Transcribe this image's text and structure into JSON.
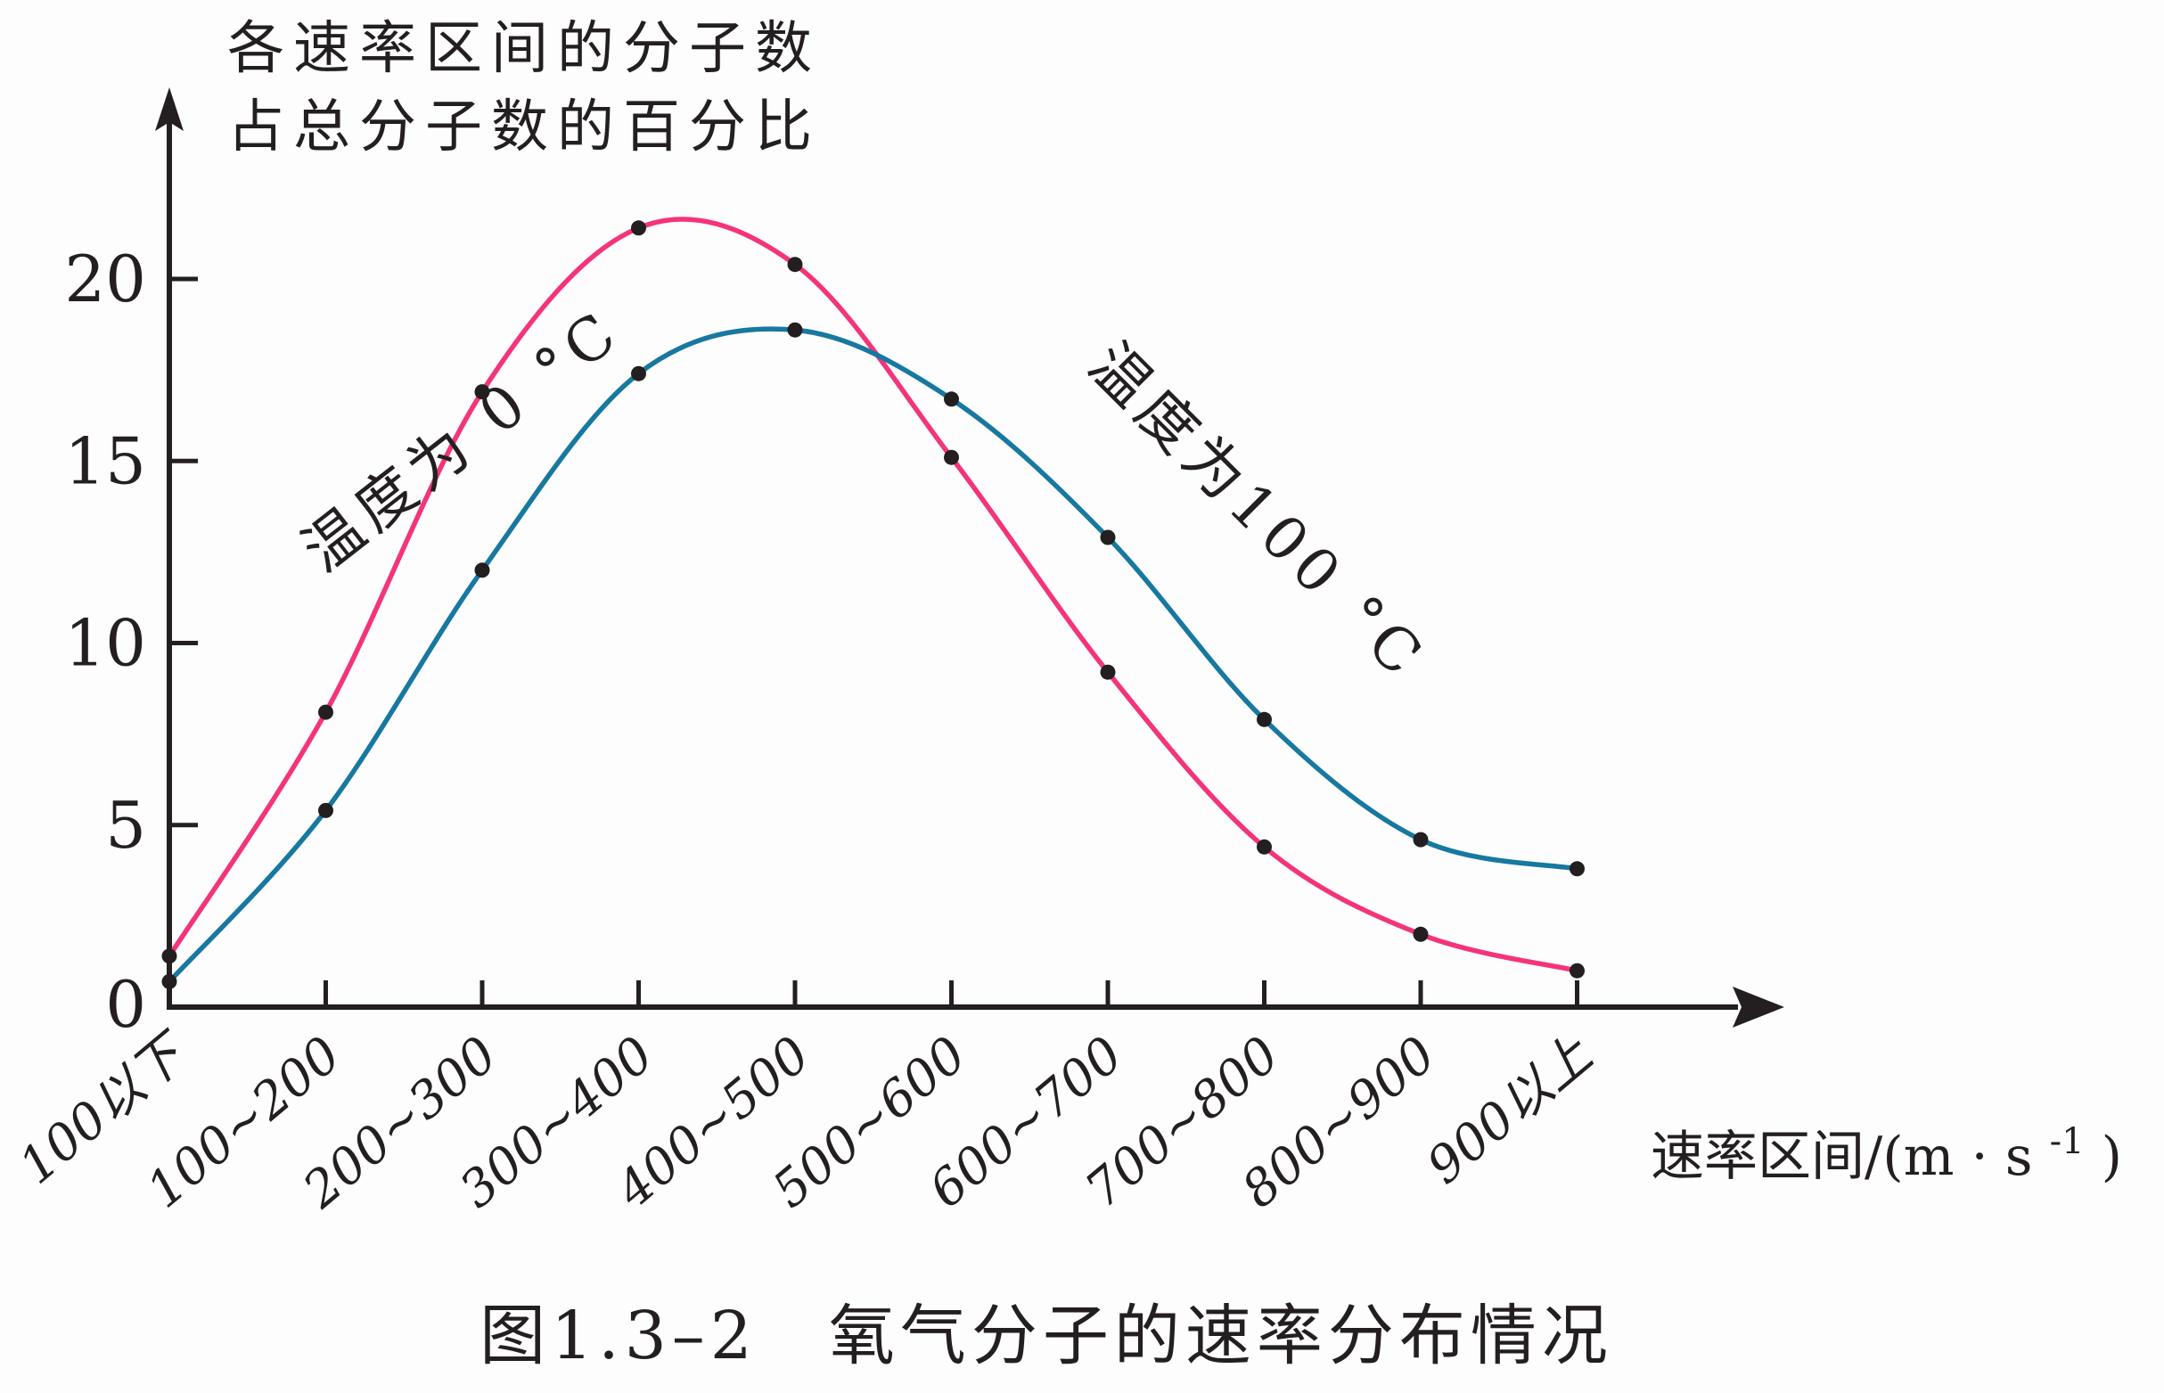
{
  "figure": {
    "y_axis_title_line1": "各速率区间的分子数",
    "y_axis_title_line2": "占总分子数的百分比",
    "x_axis_title": {
      "prefix": "速率区间/(m · s",
      "sup": "-1",
      "suffix": ")"
    },
    "caption": "图1.3–2　氧气分子的速率分布情况"
  },
  "chart_data": {
    "type": "line",
    "title": "氧气分子的速率分布情况",
    "xlabel": "速率区间/(m·s⁻¹)",
    "ylabel": "各速率区间的分子数占总分子数的百分比",
    "categories": [
      "100以下",
      "100~200",
      "200~300",
      "300~400",
      "400~500",
      "500~600",
      "600~700",
      "700~800",
      "800~900",
      "900以上"
    ],
    "y_ticks": [
      5,
      10,
      15,
      20
    ],
    "y_origin_label": "0",
    "ylim": [
      0,
      23.5
    ],
    "grid": false,
    "legend_position": "inline-rotated-labels",
    "point_color": "#231f20",
    "series": [
      {
        "name": "温度为 0 °C",
        "color": "#f4347a",
        "values": [
          1.4,
          8.1,
          16.9,
          21.4,
          20.4,
          15.1,
          9.2,
          4.4,
          2.0,
          1.0
        ],
        "label_pos": {
          "x": 532,
          "y": 512,
          "angle": -38
        }
      },
      {
        "name": "温度为100 °C",
        "color": "#1778a0",
        "values": [
          0.7,
          5.4,
          12.0,
          17.4,
          18.6,
          16.7,
          12.9,
          7.9,
          4.6,
          3.8
        ],
        "label_pos": {
          "x": 1395,
          "y": 590,
          "angle": 45
        }
      }
    ]
  }
}
